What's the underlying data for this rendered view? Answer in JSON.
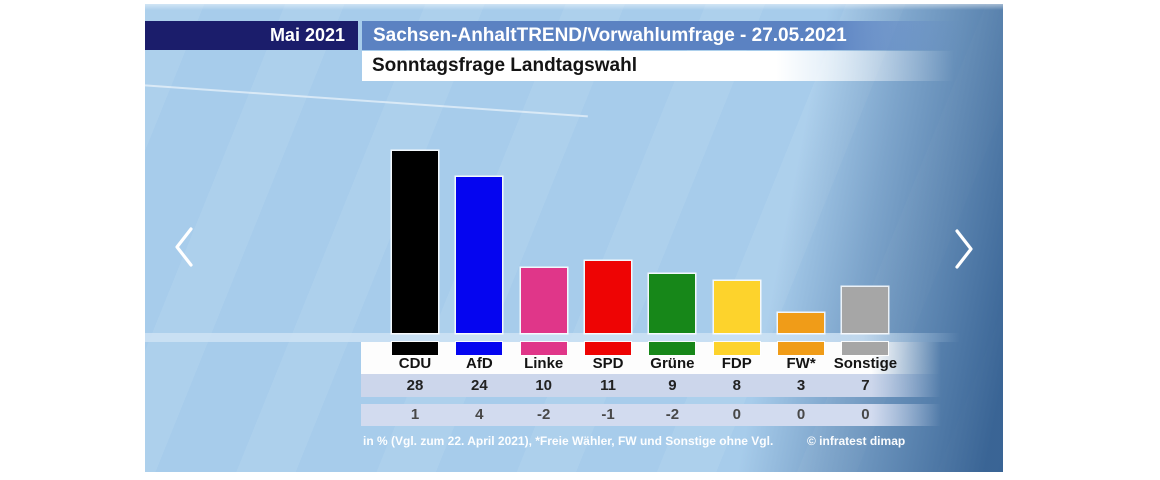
{
  "header": {
    "date_label": "Mai 2021",
    "title": "Sachsen-AnhaltTREND/Vorwahlumfrage - 27.05.2021",
    "subtitle": "Sonntagsfrage Landtagswahl"
  },
  "chart_data": {
    "type": "bar",
    "title": "Sonntagsfrage Landtagswahl",
    "categories": [
      "CDU",
      "AfD",
      "Linke",
      "SPD",
      "Grüne",
      "FDP",
      "FW*",
      "Sonstige"
    ],
    "series": [
      {
        "name": "in %",
        "values": [
          28,
          24,
          10,
          11,
          9,
          8,
          3,
          7
        ]
      },
      {
        "name": "Vgl. zum 22. April 2021",
        "values": [
          1,
          4,
          -2,
          -1,
          -2,
          0,
          0,
          0
        ]
      }
    ],
    "bar_colors": [
      "#000000",
      "#0505f0",
      "#e03689",
      "#ee0404",
      "#178719",
      "#fdd32c",
      "#f09c18",
      "#a6a6a6"
    ],
    "ylabel": "in %",
    "ylim": [
      0,
      30
    ],
    "grid": false,
    "legend": "none",
    "value_labels_position": "table-below"
  },
  "footer": {
    "note": "in % (Vgl. zum 22. April 2021), *Freie Wähler, FW und Sonstige ohne Vgl.",
    "copyright": "© infratest dimap"
  },
  "nav": {
    "prev_icon": "chevron-left",
    "next_icon": "chevron-right"
  },
  "colors": {
    "date_badge_bg": "#1b1d6b",
    "title_bar_bg": "#5b82c2",
    "subtitle_bg": "#ffffff",
    "slide_bg": "#a7cceb",
    "value_row_bg": "#ccd6eb",
    "change_row_bg": "#d2dbef"
  }
}
